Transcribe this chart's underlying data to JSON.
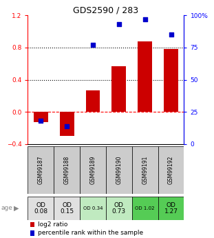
{
  "title": "GDS2590 / 283",
  "samples": [
    "GSM99187",
    "GSM99188",
    "GSM99189",
    "GSM99190",
    "GSM99191",
    "GSM99192"
  ],
  "log2_ratio": [
    -0.13,
    -0.3,
    0.27,
    0.57,
    0.88,
    0.78
  ],
  "percentile_rank": [
    18,
    14,
    77,
    93,
    97,
    85
  ],
  "bar_color": "#cc0000",
  "dot_color": "#0000cc",
  "ylim_left": [
    -0.4,
    1.2
  ],
  "ylim_right": [
    0,
    100
  ],
  "yticks_left": [
    -0.4,
    0.0,
    0.4,
    0.8,
    1.2
  ],
  "yticks_right": [
    0,
    25,
    50,
    75,
    100
  ],
  "ytick_labels_right": [
    "0",
    "25",
    "50",
    "75",
    "100%"
  ],
  "hline_y": [
    0.4,
    0.8
  ],
  "zero_line_y": 0.0,
  "row_labels": [
    "OD\n0.08",
    "OD\n0.15",
    "OD 0.34",
    "OD\n0.73",
    "OD 1.02",
    "OD\n1.27"
  ],
  "row_colors": [
    "#e0e0e0",
    "#e0e0e0",
    "#c0eac0",
    "#c0eac0",
    "#55cc55",
    "#55cc55"
  ],
  "row_fontsize_large": [
    true,
    true,
    false,
    true,
    false,
    true
  ],
  "age_label": "age",
  "legend_items": [
    {
      "color": "#cc0000",
      "label": "log2 ratio"
    },
    {
      "color": "#0000cc",
      "label": "percentile rank within the sample"
    }
  ],
  "sample_bg_color": "#cccccc",
  "bar_width": 0.55
}
